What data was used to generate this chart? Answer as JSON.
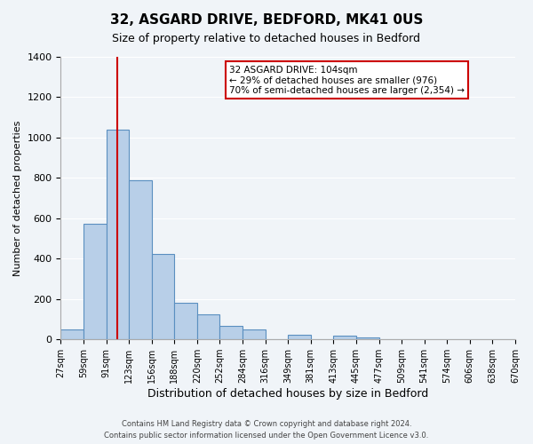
{
  "title": "32, ASGARD DRIVE, BEDFORD, MK41 0US",
  "subtitle": "Size of property relative to detached houses in Bedford",
  "xlabel": "Distribution of detached houses by size in Bedford",
  "ylabel": "Number of detached properties",
  "bin_labels": [
    "27sqm",
    "59sqm",
    "91sqm",
    "123sqm",
    "156sqm",
    "188sqm",
    "220sqm",
    "252sqm",
    "284sqm",
    "316sqm",
    "349sqm",
    "381sqm",
    "413sqm",
    "445sqm",
    "477sqm",
    "509sqm",
    "541sqm",
    "574sqm",
    "606sqm",
    "638sqm",
    "670sqm"
  ],
  "bar_values": [
    50,
    575,
    1040,
    790,
    425,
    180,
    125,
    65,
    50,
    0,
    25,
    0,
    20,
    10,
    0,
    0,
    0,
    0,
    0,
    0
  ],
  "bar_color": "#b8cfe8",
  "bar_edge_color": "#5a8fc0",
  "vline_pos": 2.5,
  "vline_color": "#cc0000",
  "ylim": [
    0,
    1400
  ],
  "yticks": [
    0,
    200,
    400,
    600,
    800,
    1000,
    1200,
    1400
  ],
  "annotation_text": "32 ASGARD DRIVE: 104sqm\n← 29% of detached houses are smaller (976)\n70% of semi-detached houses are larger (2,354) →",
  "annotation_box_color": "#ffffff",
  "annotation_box_edge": "#cc0000",
  "footer_line1": "Contains HM Land Registry data © Crown copyright and database right 2024.",
  "footer_line2": "Contains public sector information licensed under the Open Government Licence v3.0.",
  "background_color": "#f0f4f8",
  "grid_color": "#ffffff"
}
